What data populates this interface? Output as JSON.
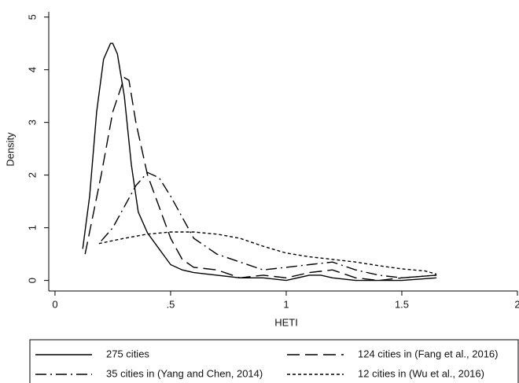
{
  "chart_data": {
    "type": "line",
    "xlabel": "HETI",
    "ylabel": "Density",
    "xlim": [
      -0.027,
      2.0
    ],
    "ylim": [
      -0.2,
      5.1
    ],
    "xticks": [
      0,
      {
        "value": 0.5,
        "label": ".5"
      },
      1,
      {
        "value": 1.5,
        "label": "1.5"
      },
      2
    ],
    "yticks": [
      0,
      1,
      2,
      3,
      4,
      5
    ],
    "series": [
      {
        "name": "275 cities",
        "color": "#000000",
        "dash": "none",
        "x": [
          0.12,
          0.15,
          0.18,
          0.21,
          0.24,
          0.25,
          0.27,
          0.3,
          0.33,
          0.36,
          0.4,
          0.45,
          0.5,
          0.55,
          0.6,
          0.7,
          0.8,
          0.9,
          1.0,
          1.1,
          1.15,
          1.2,
          1.3,
          1.4,
          1.5,
          1.65
        ],
        "values": [
          0.6,
          1.6,
          3.2,
          4.2,
          4.5,
          4.5,
          4.3,
          3.5,
          2.2,
          1.3,
          0.9,
          0.6,
          0.3,
          0.2,
          0.15,
          0.1,
          0.05,
          0.05,
          0.0,
          0.1,
          0.1,
          0.05,
          0.0,
          0.0,
          0.0,
          0.05
        ]
      },
      {
        "name": "124 cities in (Fang et al., 2016)",
        "color": "#000000",
        "dash": "16 7",
        "x": [
          0.13,
          0.2,
          0.25,
          0.3,
          0.32,
          0.35,
          0.4,
          0.45,
          0.5,
          0.55,
          0.6,
          0.7,
          0.8,
          0.9,
          1.0,
          1.1,
          1.2,
          1.3,
          1.4,
          1.5,
          1.65
        ],
        "values": [
          0.5,
          2.0,
          3.2,
          3.85,
          3.8,
          3.0,
          2.0,
          1.4,
          0.8,
          0.4,
          0.25,
          0.2,
          0.05,
          0.1,
          0.05,
          0.15,
          0.2,
          0.05,
          0.0,
          0.05,
          0.1
        ]
      },
      {
        "name": "35 cities in (Yang and Chen, 2014)",
        "color": "#000000",
        "dash": "14 5 2 5",
        "x": [
          0.2,
          0.25,
          0.3,
          0.35,
          0.4,
          0.45,
          0.5,
          0.55,
          0.6,
          0.7,
          0.8,
          0.9,
          1.0,
          1.1,
          1.2,
          1.3,
          1.4,
          1.5,
          1.65
        ],
        "values": [
          0.75,
          1.0,
          1.4,
          1.8,
          2.05,
          1.95,
          1.6,
          1.2,
          0.8,
          0.5,
          0.35,
          0.2,
          0.25,
          0.3,
          0.35,
          0.2,
          0.1,
          0.05,
          0.1
        ]
      },
      {
        "name": "12 cities in (Wu et al., 2016)",
        "color": "#000000",
        "dash": "4 3",
        "x": [
          0.19,
          0.3,
          0.4,
          0.5,
          0.6,
          0.7,
          0.8,
          0.9,
          1.0,
          1.1,
          1.2,
          1.3,
          1.4,
          1.5,
          1.6,
          1.65
        ],
        "values": [
          0.7,
          0.8,
          0.88,
          0.92,
          0.92,
          0.88,
          0.8,
          0.65,
          0.52,
          0.45,
          0.4,
          0.35,
          0.28,
          0.22,
          0.18,
          0.12
        ]
      }
    ]
  }
}
